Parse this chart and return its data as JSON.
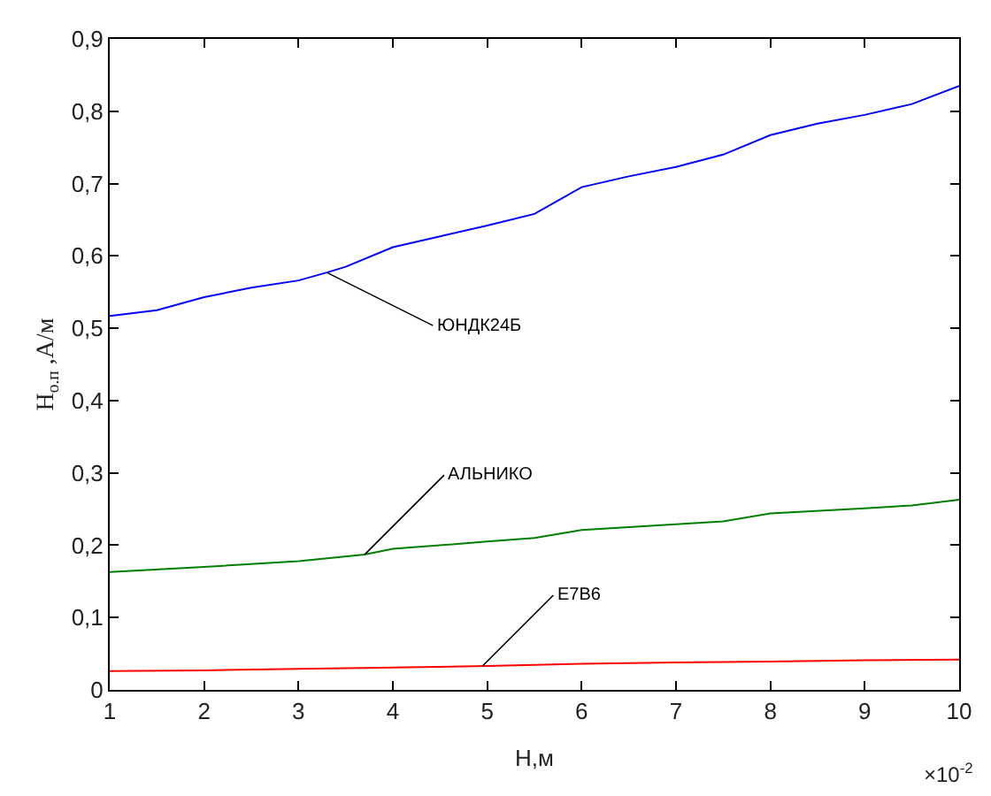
{
  "chart_data": {
    "type": "line",
    "xlabel": "Н,м",
    "ylabel": "H$_{о.п}$ ,А/м",
    "xlim": [
      1,
      10
    ],
    "xticks": [
      1,
      2,
      3,
      4,
      5,
      6,
      7,
      8,
      9,
      10
    ],
    "ylim": [
      0,
      0.9
    ],
    "yticks": [
      0,
      {
        "value": 0.1,
        "label": "0,1"
      },
      {
        "value": 0.2,
        "label": "0,2"
      },
      {
        "value": 0.3,
        "label": "0,3"
      },
      {
        "value": 0.4,
        "label": "0,4"
      },
      {
        "value": 0.5,
        "label": "0,5"
      },
      {
        "value": 0.6,
        "label": "0,6"
      },
      {
        "value": 0.7,
        "label": "0,7"
      },
      {
        "value": 0.8,
        "label": "0,8"
      },
      {
        "value": 0.9,
        "label": "0,9"
      }
    ],
    "marker": "none",
    "line_style": "solid",
    "series": [
      {
        "color": "#0000ff",
        "x": [
          1,
          1.5,
          2,
          2.5,
          3,
          3.3,
          3.5,
          4,
          4.5,
          5,
          5.5,
          6,
          6.5,
          7,
          7.5,
          8,
          8.5,
          9,
          9.5,
          10
        ],
        "values": [
          0.517,
          0.525,
          0.543,
          0.556,
          0.566,
          0.577,
          0.585,
          0.612,
          0.627,
          0.642,
          0.658,
          0.695,
          0.71,
          0.723,
          0.74,
          0.767,
          0.783,
          0.795,
          0.81,
          0.835
        ]
      },
      {
        "color": "#008000",
        "x": [
          1,
          2,
          3,
          3.7,
          4,
          5,
          5.5,
          6,
          7,
          7.5,
          8,
          9,
          9.5,
          10
        ],
        "values": [
          0.163,
          0.17,
          0.178,
          0.187,
          0.195,
          0.205,
          0.21,
          0.221,
          0.229,
          0.233,
          0.244,
          0.251,
          0.255,
          0.263
        ]
      },
      {
        "color": "#ff0000",
        "x": [
          1,
          2,
          3,
          4,
          5,
          6,
          7,
          8,
          9,
          10
        ],
        "values": [
          0.026,
          0.027,
          0.029,
          0.031,
          0.033,
          0.036,
          0.038,
          0.039,
          0.041,
          0.042
        ]
      }
    ],
    "annotations": [
      {
        "text": "ЮНДК24Б",
        "x": 3.3,
        "y": 0.577
      },
      {
        "text": "АЛЬНИКО",
        "x": 3.7,
        "y": 0.187
      },
      {
        "text": "E7B6",
        "x": 4.95,
        "y": 0.033
      },
      "×10$^{-2}$"
    ]
  }
}
